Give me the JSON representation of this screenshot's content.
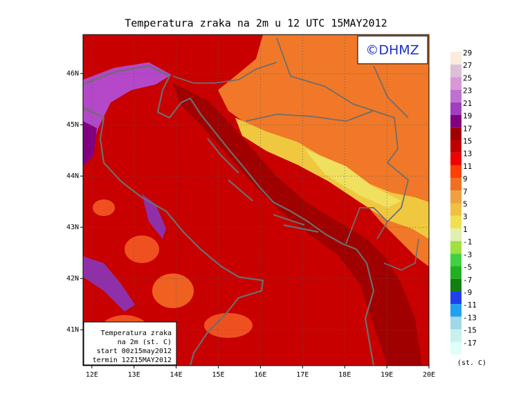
{
  "title": "Temperatura zraka na 2m u 12 UTC 15MAY2012",
  "logo": "©DHMZ",
  "map": {
    "xlim": [
      11.79,
      20
    ],
    "ylim": [
      40.3,
      46.76
    ],
    "xticks": [
      {
        "value": 12,
        "label": "12E"
      },
      {
        "value": 13,
        "label": "13E"
      },
      {
        "value": 14,
        "label": "14E"
      },
      {
        "value": 15,
        "label": "15E"
      },
      {
        "value": 16,
        "label": "16E"
      },
      {
        "value": 17,
        "label": "17E"
      },
      {
        "value": 18,
        "label": "18E"
      },
      {
        "value": 19,
        "label": "19E"
      },
      {
        "value": 20,
        "label": "20E"
      }
    ],
    "yticks": [
      {
        "value": 46,
        "label": "46N"
      },
      {
        "value": 45,
        "label": "45N"
      },
      {
        "value": 44,
        "label": "44N"
      },
      {
        "value": 43,
        "label": "43N"
      },
      {
        "value": 42,
        "label": "42N"
      },
      {
        "value": 41,
        "label": "41N"
      }
    ]
  },
  "info_box": [
    "Temperatura zraka",
    "na 2m (st. C)",
    "start 00z15may2012",
    "termin 12Z15MAY2012"
  ],
  "colorbar": {
    "unit": "(st. C)",
    "levels": [
      29,
      27,
      25,
      23,
      21,
      19,
      17,
      15,
      13,
      11,
      9,
      7,
      5,
      3,
      1,
      -1,
      -3,
      -5,
      -7,
      -9,
      -11,
      -13,
      -15,
      -17
    ],
    "colors": [
      "#fbebdc",
      "#dcc0d8",
      "#d898d8",
      "#c070d0",
      "#a040c0",
      "#800080",
      "#a00000",
      "#c00000",
      "#f00000",
      "#ff4000",
      "#f07020",
      "#f0a040",
      "#f0c040",
      "#f0e050",
      "#e0f0b0",
      "#a0e040",
      "#40d040",
      "#20b020",
      "#108010",
      "#2040f0",
      "#20a0f0",
      "#a0d8e8",
      "#c8f0f0",
      "#e0fff8"
    ]
  }
}
